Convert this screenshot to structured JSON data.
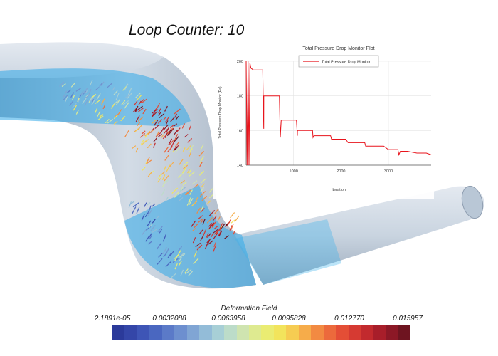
{
  "header": {
    "loop_counter": "Loop Counter: 10"
  },
  "colors": {
    "pipe_surface": "#c9d4e0",
    "pipe_highlight": "#2fa8e8",
    "vector_low": "#3a8fd8",
    "vector_mid": "#d6e23a",
    "vector_high": "#e2342a",
    "plot_line": "#e8141c"
  },
  "colorbar": {
    "title": "Deformation Field",
    "ticks": [
      "2.1891e-05",
      "0.0032088",
      "0.0063958",
      "0.0095828",
      "0.012770",
      "0.015957"
    ],
    "colors": [
      "#2b3a9a",
      "#3446a8",
      "#3e55b6",
      "#4a67c0",
      "#5b7ac8",
      "#6d8fcf",
      "#80a5d4",
      "#93bcd8",
      "#a7cfd6",
      "#bcdcc9",
      "#cfe4b0",
      "#deea90",
      "#eaec72",
      "#f2e45c",
      "#f6cc52",
      "#f6ac4a",
      "#f28a42",
      "#ec6a3c",
      "#e44e36",
      "#d63a32",
      "#c22a2e",
      "#a81e2a",
      "#8c1826",
      "#6e1420"
    ]
  },
  "chart_data": {
    "type": "line",
    "title": "Total Pressure Drop Monitor Plot",
    "xlabel": "Iteration",
    "ylabel": "Total Pressure Drop Monitor (Pa)",
    "legend": [
      "Total Pressure Drop Monitor"
    ],
    "legend_position": "top-center",
    "grid": true,
    "xlim": [
      0,
      3900
    ],
    "ylim": [
      140,
      200
    ],
    "xticks": [
      1000,
      2000,
      3000
    ],
    "yticks": [
      140,
      160,
      180,
      200
    ],
    "series": [
      {
        "name": "Total Pressure Drop Monitor",
        "x": [
          0,
          20,
          40,
          60,
          80,
          100,
          150,
          200,
          250,
          300,
          350,
          370,
          372,
          380,
          400,
          450,
          500,
          600,
          700,
          720,
          740,
          742,
          750,
          800,
          900,
          1000,
          1060,
          1080,
          1082,
          1100,
          1200,
          1300,
          1400,
          1410,
          1430,
          1432,
          1450,
          1500,
          1600,
          1700,
          1780,
          1800,
          1900,
          2000,
          2100,
          2150,
          2200,
          2300,
          2400,
          2500,
          2520,
          2600,
          2800,
          2900,
          3000,
          3200,
          3220,
          3250,
          3400,
          3600,
          3800,
          3900
        ],
        "y": [
          200,
          140,
          200,
          140,
          199,
          196,
          195,
          195,
          195,
          195,
          195,
          161,
          180,
          180,
          180,
          180,
          180,
          180,
          180,
          156,
          166,
          166,
          166,
          166,
          166,
          166,
          166,
          157,
          160,
          160,
          160,
          160,
          160,
          156,
          157,
          157,
          157,
          157,
          157,
          157,
          157,
          155,
          155,
          155,
          155,
          153,
          153,
          153,
          153,
          153,
          151,
          151,
          151,
          151,
          149,
          149,
          146,
          148,
          148,
          147,
          147,
          146
        ]
      }
    ]
  }
}
